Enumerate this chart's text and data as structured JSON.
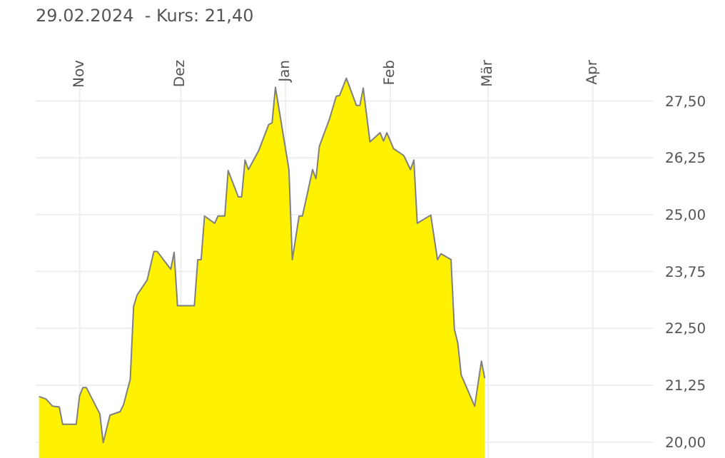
{
  "chart_data": {
    "type": "area",
    "title": "29.02.2024  - Kurs: 21,40",
    "x": [
      "2023-10-20",
      "2023-10-22",
      "2023-10-24",
      "2023-10-26",
      "2023-10-27",
      "2023-10-31",
      "2023-11-01",
      "2023-11-02",
      "2023-11-03",
      "2023-11-07",
      "2023-11-08",
      "2023-11-10",
      "2023-11-13",
      "2023-11-14",
      "2023-11-16",
      "2023-11-17",
      "2023-11-18",
      "2023-11-21",
      "2023-11-23",
      "2023-11-24",
      "2023-11-28",
      "2023-11-29",
      "2023-11-30",
      "2023-12-05",
      "2023-12-06",
      "2023-12-07",
      "2023-12-08",
      "2023-12-11",
      "2023-12-12",
      "2023-12-14",
      "2023-12-15",
      "2023-12-18",
      "2023-12-19",
      "2023-12-20",
      "2023-12-21",
      "2023-12-24",
      "2023-12-27",
      "2023-12-28",
      "2023-12-29",
      "2024-01-02",
      "2024-01-03",
      "2024-01-05",
      "2024-01-06",
      "2024-01-09",
      "2024-01-10",
      "2024-01-11",
      "2024-01-14",
      "2024-01-16",
      "2024-01-17",
      "2024-01-19",
      "2024-01-22",
      "2024-01-23",
      "2024-01-24",
      "2024-01-26",
      "2024-01-29",
      "2024-01-30",
      "2024-01-31",
      "2024-02-02",
      "2024-02-05",
      "2024-02-07",
      "2024-02-08",
      "2024-02-09",
      "2024-02-13",
      "2024-02-15",
      "2024-02-16",
      "2024-02-19",
      "2024-02-20",
      "2024-02-21",
      "2024-02-22",
      "2024-02-26",
      "2024-02-28",
      "2024-02-29"
    ],
    "series": [
      {
        "color": "#fff200",
        "values": [
          21.0,
          20.95,
          20.79,
          20.77,
          20.39,
          20.39,
          21.02,
          21.2,
          21.2,
          20.62,
          19.99,
          20.59,
          20.67,
          20.82,
          21.38,
          22.98,
          23.23,
          23.56,
          24.19,
          24.19,
          23.8,
          24.17,
          23.0,
          23.0,
          24.01,
          24.01,
          24.97,
          24.81,
          24.97,
          24.97,
          25.97,
          25.39,
          25.39,
          26.2,
          25.99,
          26.4,
          26.98,
          27.02,
          27.8,
          25.99,
          24.01,
          24.97,
          24.97,
          25.99,
          25.79,
          26.5,
          27.1,
          27.6,
          27.62,
          28.0,
          27.4,
          27.4,
          27.78,
          26.6,
          26.8,
          26.62,
          26.8,
          26.45,
          26.3,
          25.99,
          26.2,
          24.81,
          24.99,
          24.01,
          24.14,
          24.01,
          22.48,
          22.18,
          21.48,
          20.79,
          21.78,
          21.4
        ]
      }
    ],
    "xlim": [
      "2023-10-19",
      "2024-04-19"
    ],
    "xticks": [
      {
        "value": "2023-11-01",
        "label": "Nov"
      },
      {
        "value": "2023-12-01",
        "label": "Dez"
      },
      {
        "value": "2024-01-01",
        "label": "Jan"
      },
      {
        "value": "2024-02-01",
        "label": "Feb"
      },
      {
        "value": "2024-03-01",
        "label": "Mär"
      },
      {
        "value": "2024-04-01",
        "label": "Apr"
      }
    ],
    "ylim": [
      19.65,
      28.15
    ],
    "yticks": [
      {
        "value": 20,
        "label": "20,00"
      },
      {
        "value": 21.25,
        "label": "21,25"
      },
      {
        "value": 22.5,
        "label": "22,50"
      },
      {
        "value": 23.75,
        "label": "23,75"
      },
      {
        "value": 25,
        "label": "25,00"
      },
      {
        "value": 26.25,
        "label": "26,25"
      },
      {
        "value": 27.5,
        "label": "27,50"
      }
    ],
    "grid": true
  }
}
